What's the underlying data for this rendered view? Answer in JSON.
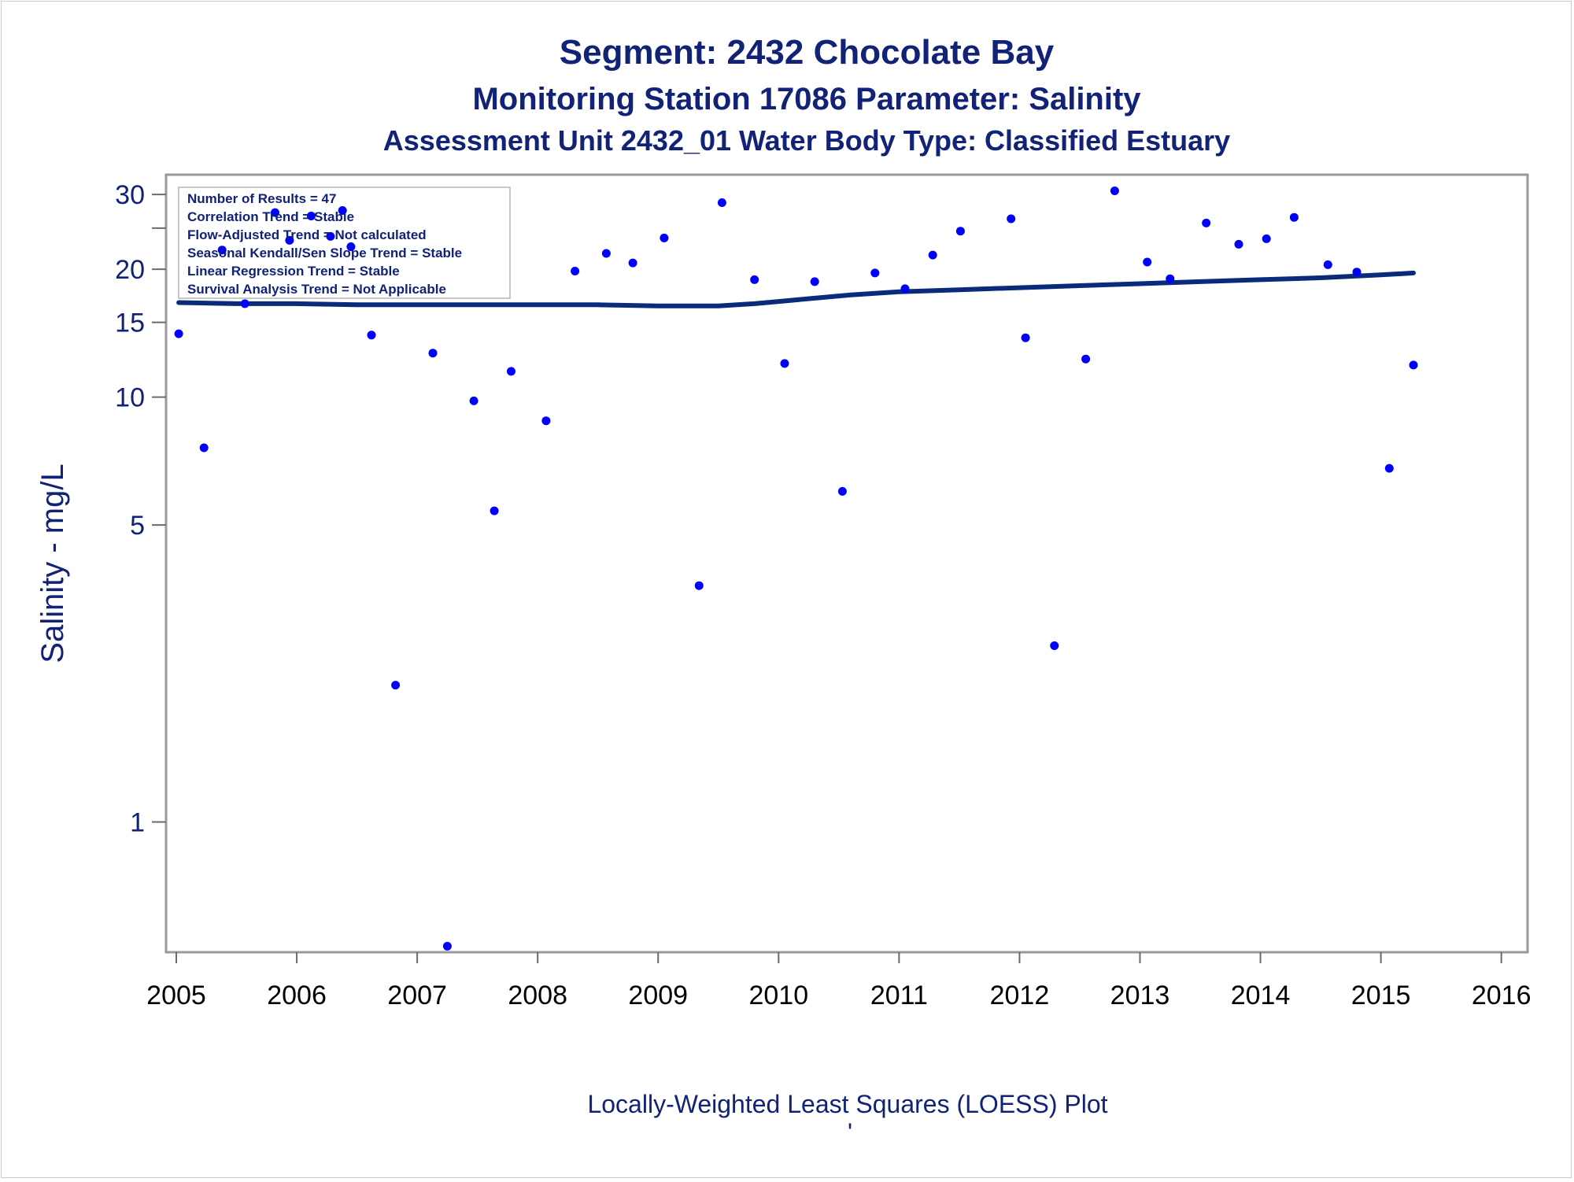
{
  "colors": {
    "title": "#112277",
    "points": "#0000ff",
    "loess_line": "#0a2a7a",
    "frame": "#9a9a9a"
  },
  "chart_data": {
    "type": "scatter",
    "title": "Segment: 2432  Chocolate Bay",
    "subtitle": "Monitoring Station 17086 Parameter: Salinity",
    "subtitle2": "Assessment Unit 2432_01   Water Body Type: Classified Estuary",
    "ylabel": "Salinity - mg/L",
    "xlabel": "",
    "footnote": "Locally-Weighted Least Squares (LOESS) Plot",
    "footnote_mark": "'",
    "yscale": "log",
    "ylim": [
      0.5,
      32
    ],
    "xlim": [
      2005,
      2016.1
    ],
    "yticks": [
      1,
      5,
      10,
      15,
      20,
      30
    ],
    "ytick_labels": [
      "1",
      "5",
      "10",
      "15",
      "20",
      "30"
    ],
    "yminor_ticks": [
      25
    ],
    "xticks": [
      2005,
      2006,
      2007,
      2008,
      2009,
      2010,
      2011,
      2012,
      2013,
      2014,
      2015,
      2016
    ],
    "xtick_labels": [
      "2005",
      "2006",
      "2007",
      "2008",
      "2009",
      "2010",
      "2011",
      "2012",
      "2013",
      "2014",
      "2015",
      "2016"
    ],
    "grid": false,
    "legend_box": {
      "placement": "top-left",
      "lines": [
        "Number of Results = 47",
        "Correlation Trend = Stable",
        "Flow-Adjusted Trend = Not calculated",
        "Seasonal Kendall/Sen Slope Trend = Stable",
        "Linear Regression Trend = Stable",
        "Survival Analysis Trend = Not Applicable"
      ]
    },
    "points": [
      {
        "x": 2005.02,
        "y": 14.1
      },
      {
        "x": 2005.23,
        "y": 7.6
      },
      {
        "x": 2005.38,
        "y": 22.2
      },
      {
        "x": 2005.57,
        "y": 16.6
      },
      {
        "x": 2005.82,
        "y": 27.2
      },
      {
        "x": 2005.94,
        "y": 23.4
      },
      {
        "x": 2006.12,
        "y": 26.7
      },
      {
        "x": 2006.28,
        "y": 23.9
      },
      {
        "x": 2006.38,
        "y": 27.5
      },
      {
        "x": 2006.45,
        "y": 22.6
      },
      {
        "x": 2006.62,
        "y": 14.0
      },
      {
        "x": 2006.82,
        "y": 2.1
      },
      {
        "x": 2007.13,
        "y": 12.7
      },
      {
        "x": 2007.25,
        "y": 0.51
      },
      {
        "x": 2007.47,
        "y": 9.8
      },
      {
        "x": 2007.64,
        "y": 5.4
      },
      {
        "x": 2007.78,
        "y": 11.5
      },
      {
        "x": 2008.07,
        "y": 8.8
      },
      {
        "x": 2008.31,
        "y": 19.8
      },
      {
        "x": 2008.57,
        "y": 21.8
      },
      {
        "x": 2008.79,
        "y": 20.7
      },
      {
        "x": 2009.05,
        "y": 23.7
      },
      {
        "x": 2009.34,
        "y": 3.6
      },
      {
        "x": 2009.53,
        "y": 28.7
      },
      {
        "x": 2009.8,
        "y": 18.9
      },
      {
        "x": 2010.05,
        "y": 12.0
      },
      {
        "x": 2010.3,
        "y": 18.7
      },
      {
        "x": 2010.53,
        "y": 6.0
      },
      {
        "x": 2010.8,
        "y": 19.6
      },
      {
        "x": 2011.05,
        "y": 18.0
      },
      {
        "x": 2011.28,
        "y": 21.6
      },
      {
        "x": 2011.51,
        "y": 24.6
      },
      {
        "x": 2011.93,
        "y": 26.3
      },
      {
        "x": 2012.05,
        "y": 13.8
      },
      {
        "x": 2012.29,
        "y": 2.6
      },
      {
        "x": 2012.55,
        "y": 12.3
      },
      {
        "x": 2012.79,
        "y": 30.6
      },
      {
        "x": 2013.06,
        "y": 20.8
      },
      {
        "x": 2013.25,
        "y": 19.0
      },
      {
        "x": 2013.55,
        "y": 25.7
      },
      {
        "x": 2013.82,
        "y": 22.9
      },
      {
        "x": 2014.05,
        "y": 23.6
      },
      {
        "x": 2014.28,
        "y": 26.5
      },
      {
        "x": 2014.56,
        "y": 20.5
      },
      {
        "x": 2014.8,
        "y": 19.7
      },
      {
        "x": 2015.07,
        "y": 6.8
      },
      {
        "x": 2015.27,
        "y": 11.9
      }
    ],
    "loess": {
      "x": [
        2005.02,
        2005.5,
        2006.0,
        2006.5,
        2007.0,
        2007.5,
        2008.0,
        2008.5,
        2009.0,
        2009.5,
        2009.8,
        2010.0,
        2010.3,
        2010.6,
        2011.0,
        2011.5,
        2012.0,
        2012.5,
        2013.0,
        2013.5,
        2014.0,
        2014.5,
        2015.0,
        2015.27
      ],
      "y": [
        16.7,
        16.6,
        16.6,
        16.5,
        16.5,
        16.5,
        16.5,
        16.5,
        16.4,
        16.4,
        16.6,
        16.8,
        17.1,
        17.4,
        17.7,
        17.9,
        18.1,
        18.3,
        18.5,
        18.7,
        18.9,
        19.1,
        19.4,
        19.6
      ]
    }
  }
}
